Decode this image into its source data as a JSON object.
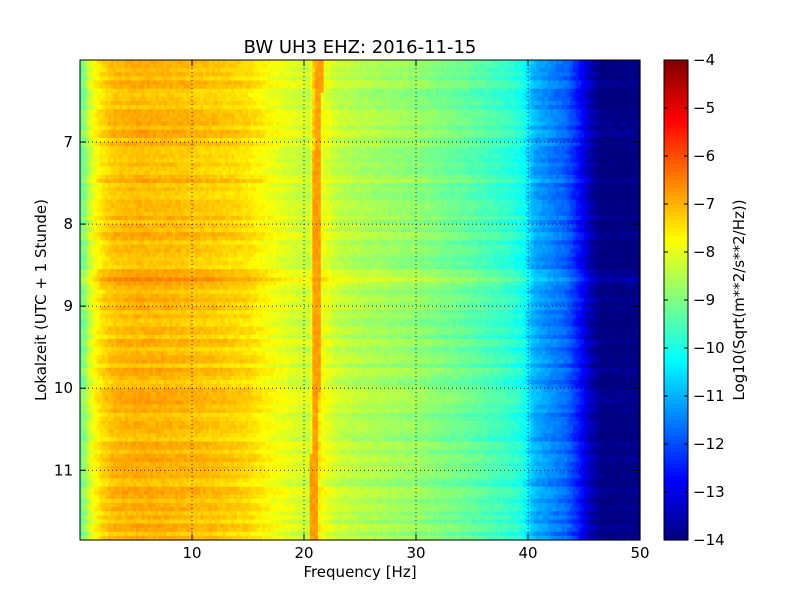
{
  "chart_data": {
    "type": "heatmap",
    "title": "BW UH3 EHZ: 2016-11-15",
    "xlabel": "Frequency [Hz]",
    "ylabel": "Lokalzeit (UTC + 1 Stunde)",
    "xlim": [
      0,
      50
    ],
    "ylim": [
      11.85,
      6.0
    ],
    "x_ticks": [
      10,
      20,
      30,
      40,
      50
    ],
    "y_ticks": [
      7,
      8,
      9,
      10,
      11
    ],
    "grid": true,
    "colormap": "jet",
    "colorbar": {
      "label": "Log10(Sqrt(m**2/s**2/Hz))",
      "range": [
        -14,
        -4
      ],
      "ticks": [
        -4,
        -5,
        -6,
        -7,
        -8,
        -9,
        -10,
        -11,
        -12,
        -13,
        -14
      ]
    },
    "spectrum_profile": {
      "frequency_hz": [
        0,
        0.5,
        1,
        2,
        3,
        5,
        8,
        12,
        15,
        17,
        19,
        20.5,
        21,
        21.5,
        23,
        25,
        28,
        30,
        32,
        35,
        38,
        39.5,
        40.5,
        42,
        43.5,
        44.5,
        45.5,
        46.5,
        50
      ],
      "log10_amplitude": [
        -9.2,
        -8.8,
        -8.0,
        -7.4,
        -7.1,
        -7.0,
        -7.05,
        -7.2,
        -7.4,
        -7.8,
        -8.1,
        -8.3,
        -6.9,
        -7.8,
        -8.3,
        -8.5,
        -8.7,
        -8.8,
        -9.0,
        -9.3,
        -9.7,
        -10.0,
        -11.0,
        -11.4,
        -11.8,
        -12.5,
        -13.4,
        -14.0,
        -14.0
      ]
    },
    "spectral_line": {
      "frequency_hz_start": 21.3,
      "frequency_hz_end": 20.9,
      "log10_amplitude": -6.8
    }
  }
}
